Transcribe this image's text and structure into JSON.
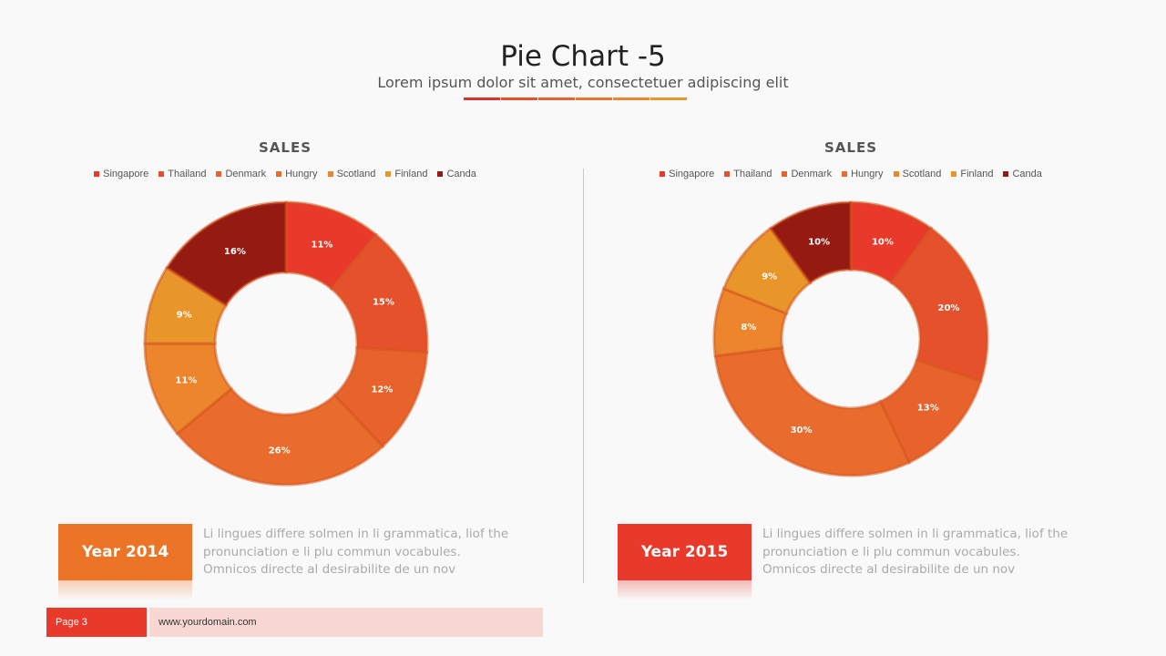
{
  "header": {
    "title": "Pie Chart -5",
    "subtitle": "Lorem ipsum dolor sit amet, consectetuer adipiscing elit",
    "accent_colors": [
      "#d9342b",
      "#e4512b",
      "#e8632c",
      "#ea732e",
      "#ec852c",
      "#e7962b"
    ]
  },
  "colors": {
    "Singapore": "#e8392b",
    "Thailand": "#e4512b",
    "Denmark": "#e8632c",
    "Hungry": "#ea6c2c",
    "Scotland": "#ec852c",
    "Finland": "#e8962a",
    "Canda": "#951b12"
  },
  "chart_data": [
    {
      "type": "pie",
      "title": "SALES",
      "categories": [
        "Singapore",
        "Thailand",
        "Denmark",
        "Hungry",
        "Scotland",
        "Finland",
        "Canda"
      ],
      "values": [
        11,
        15,
        12,
        26,
        11,
        9,
        16
      ],
      "data_labels": [
        "11%",
        "15%",
        "12%",
        "26%",
        "11%",
        "9%",
        "16%"
      ],
      "legend_position": "top"
    },
    {
      "type": "pie",
      "title": "SALES",
      "categories": [
        "Singapore",
        "Thailand",
        "Denmark",
        "Hungry",
        "Scotland",
        "Finland",
        "Canda"
      ],
      "values": [
        10,
        20,
        13,
        30,
        8,
        9,
        10
      ],
      "data_labels": [
        "10%",
        "20%",
        "13%",
        "30%",
        "8%",
        "9%",
        "10%"
      ],
      "legend_position": "top"
    }
  ],
  "panels": [
    {
      "year_label": "Year 2014",
      "year_color": "#ec7427",
      "description": "Li lingues differe solmen in li grammatica, liof the pronunciation  e li plu commun  vocabules. Omnicos directe al desirabilite de un  nov"
    },
    {
      "year_label": "Year 2015",
      "year_color": "#e8392b",
      "description": "Li lingues differe solmen in li grammatica, liof the pronunciation  e li plu commun  vocabules. Omnicos directe al desirabilite de un  nov"
    }
  ],
  "footer": {
    "page": "Page 3",
    "url": "www.yourdomain.com"
  }
}
